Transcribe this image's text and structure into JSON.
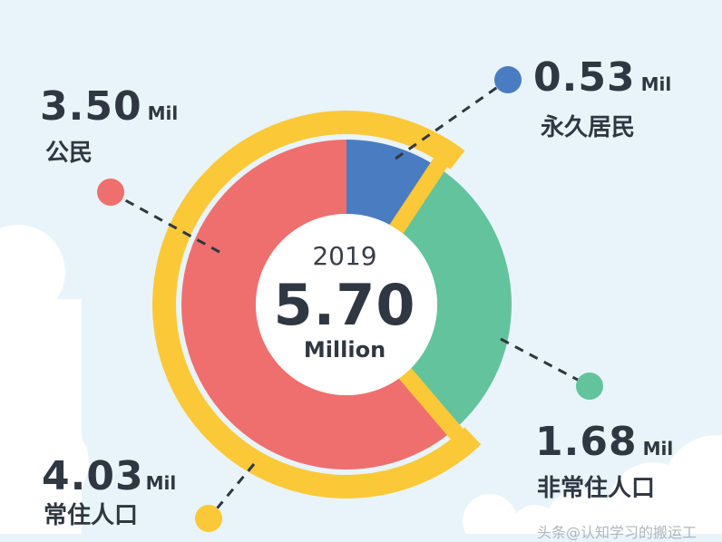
{
  "chart_data": {
    "type": "pie",
    "year": "2019",
    "total": "5.70",
    "total_unit": "Million",
    "unit": "Mil",
    "inner_ring": [
      {
        "label": "永久居民",
        "value": 0.53,
        "value_text": "0.53",
        "color": "#4a7cc2"
      },
      {
        "label": "非常住人口",
        "value": 1.68,
        "value_text": "1.68",
        "color": "#62c39c"
      },
      {
        "label": "公民",
        "value": 3.5,
        "value_text": "3.50",
        "color": "#ef6f6e"
      }
    ],
    "outer_ring": [
      {
        "label": "常住人口",
        "value": 4.03,
        "value_text": "4.03",
        "color": "#fbc838"
      }
    ]
  },
  "watermark": "头条@认知学习的搬运工"
}
